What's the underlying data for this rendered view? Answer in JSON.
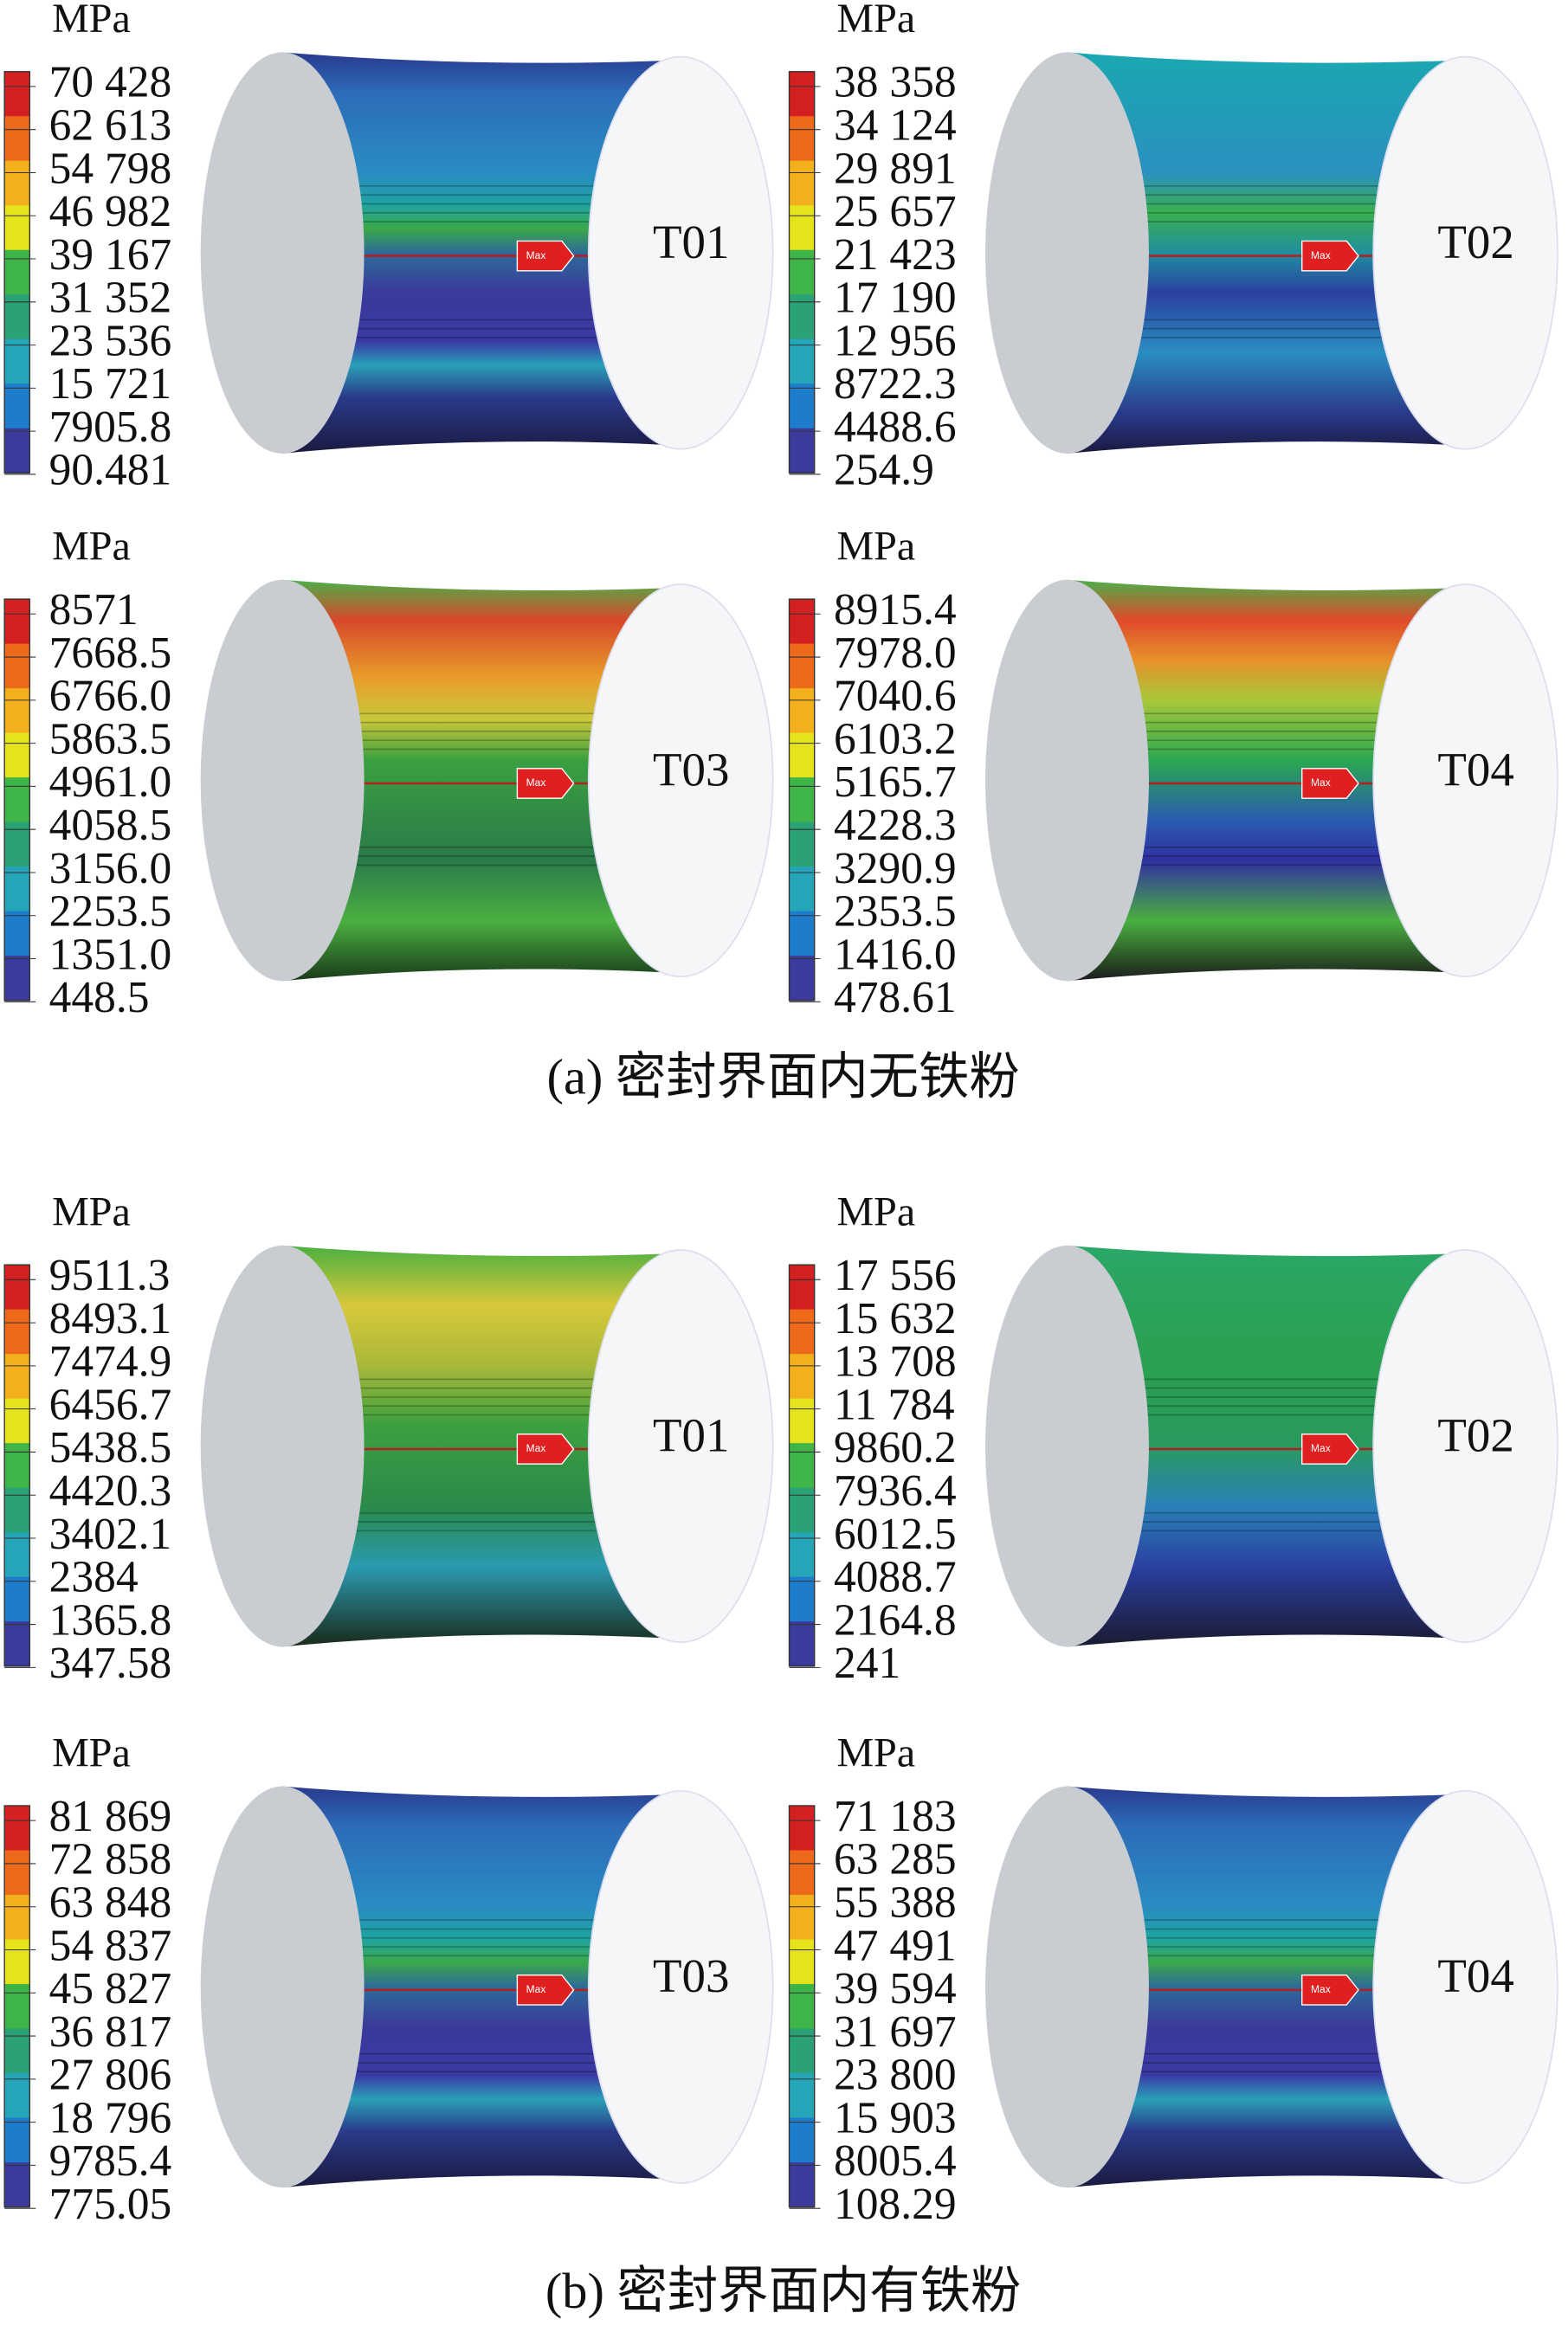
{
  "figure": {
    "groups": [
      {
        "caption": "(a) 密封界面内无铁粉",
        "panels": [
          {
            "unit": "MPa",
            "legend": [
              "70 428",
              "62 613",
              "54 798",
              "46 982",
              "39 167",
              "31 352",
              "23 536",
              "15 721",
              "7905.8",
              "90.481"
            ],
            "label": "T01",
            "max_marker": "Max"
          },
          {
            "unit": "MPa",
            "legend": [
              "38 358",
              "34 124",
              "29 891",
              "25 657",
              "21 423",
              "17 190",
              "12 956",
              "8722.3",
              "4488.6",
              "254.9"
            ],
            "label": "T02",
            "max_marker": "Max"
          },
          {
            "unit": "MPa",
            "legend": [
              "8571",
              "7668.5",
              "6766.0",
              "5863.5",
              "4961.0",
              "4058.5",
              "3156.0",
              "2253.5",
              "1351.0",
              "448.5"
            ],
            "label": "T03",
            "max_marker": "Max"
          },
          {
            "unit": "MPa",
            "legend": [
              "8915.4",
              "7978.0",
              "7040.6",
              "6103.2",
              "5165.7",
              "4228.3",
              "3290.9",
              "2353.5",
              "1416.0",
              "478.61"
            ],
            "label": "T04",
            "max_marker": "Max"
          }
        ]
      },
      {
        "caption": "(b) 密封界面内有铁粉",
        "panels": [
          {
            "unit": "MPa",
            "legend": [
              "9511.3",
              "8493.1",
              "7474.9",
              "6456.7",
              "5438.5",
              "4420.3",
              "3402.1",
              "2384",
              "1365.8",
              "347.58"
            ],
            "label": "T01",
            "max_marker": "Max"
          },
          {
            "unit": "MPa",
            "legend": [
              "17 556",
              "15 632",
              "13 708",
              "11 784",
              "9860.2",
              "7936.4",
              "6012.5",
              "4088.7",
              "2164.8",
              "241"
            ],
            "label": "T02",
            "max_marker": "Max"
          },
          {
            "unit": "MPa",
            "legend": [
              "81 869",
              "72 858",
              "63 848",
              "54 837",
              "45 827",
              "36 817",
              "27 806",
              "18 796",
              "9785.4",
              "775.05"
            ],
            "label": "T03",
            "max_marker": "Max"
          },
          {
            "unit": "MPa",
            "legend": [
              "71 183",
              "63 285",
              "55 388",
              "47 491",
              "39 594",
              "31 697",
              "23 800",
              "15 903",
              "8005.4",
              "108.29"
            ],
            "label": "T04",
            "max_marker": "Max"
          }
        ]
      }
    ]
  }
}
